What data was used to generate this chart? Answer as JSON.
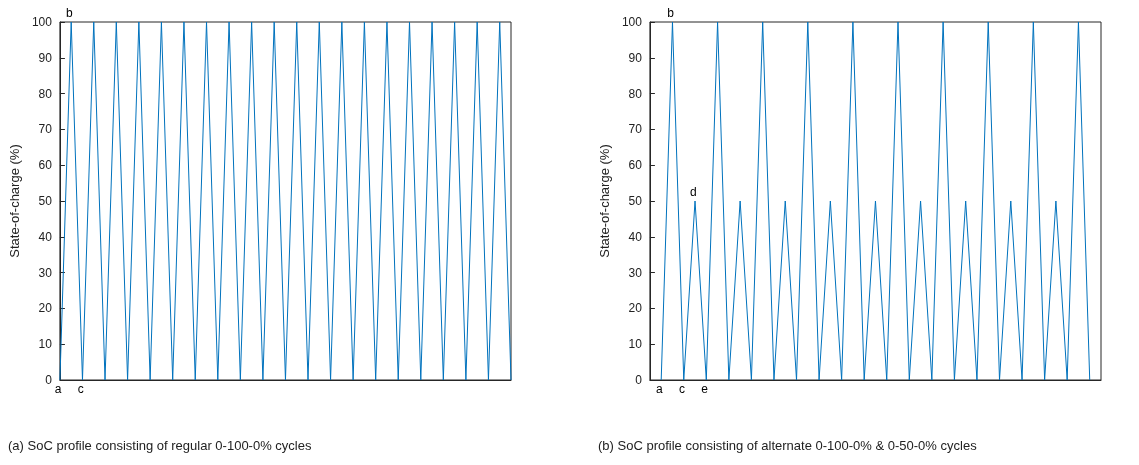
{
  "chart_data": [
    {
      "type": "line",
      "title": "(a) SoC profile consisting of regular 0-100-0% cycles",
      "ylabel": "State-of-charge (%)",
      "categories": [
        null,
        null,
        null,
        null,
        null,
        null,
        null,
        null,
        null,
        null,
        null,
        null,
        null,
        null,
        null,
        null,
        null,
        null,
        null,
        null,
        null,
        null,
        null,
        null,
        null,
        null,
        null,
        null,
        null,
        null,
        null,
        null,
        null,
        null,
        null,
        null,
        null,
        null,
        null,
        null,
        null
      ],
      "series": [
        {
          "color": "#0072bd",
          "values": [
            0,
            100,
            0,
            100,
            0,
            100,
            0,
            100,
            0,
            100,
            0,
            100,
            0,
            100,
            0,
            100,
            0,
            100,
            0,
            100,
            0,
            100,
            0,
            100,
            0,
            100,
            0,
            100,
            0,
            100,
            0,
            100,
            0,
            100,
            0,
            100,
            0,
            100,
            0,
            100,
            0
          ]
        }
      ],
      "ylim": [
        0,
        100
      ],
      "yticks": [
        0,
        10,
        20,
        30,
        40,
        50,
        60,
        70,
        80,
        90,
        100
      ],
      "tick_labels": "y",
      "grid": false,
      "marker": "none",
      "line_style": "solid",
      "annotations": [
        {
          "text": "a",
          "y": 0
        },
        {
          "text": "b",
          "y": 100
        },
        {
          "text": "c",
          "y": 0
        }
      ]
    },
    {
      "type": "line",
      "title": "(b) SoC profile consisting of alternate 0-100-0% & 0-50-0% cycles",
      "ylabel": "State-of-charge (%)",
      "categories": [
        null,
        null,
        null,
        null,
        null,
        null,
        null,
        null,
        null,
        null,
        null,
        null,
        null,
        null,
        null,
        null,
        null,
        null,
        null,
        null,
        null,
        null,
        null,
        null,
        null,
        null,
        null,
        null,
        null,
        null,
        null,
        null,
        null,
        null,
        null,
        null,
        null,
        null,
        null,
        null,
        null
      ],
      "series": [
        {
          "color": "#0072bd",
          "values": [
            null,
            0,
            100,
            0,
            50,
            0,
            100,
            0,
            50,
            0,
            100,
            0,
            50,
            0,
            100,
            0,
            50,
            0,
            100,
            0,
            50,
            0,
            100,
            0,
            50,
            0,
            100,
            0,
            50,
            0,
            100,
            0,
            50,
            0,
            100,
            0,
            50,
            0,
            100,
            0,
            null
          ]
        }
      ],
      "ylim": [
        0,
        100
      ],
      "yticks": [
        0,
        10,
        20,
        30,
        40,
        50,
        60,
        70,
        80,
        90,
        100
      ],
      "tick_labels": "y",
      "grid": false,
      "marker": "none",
      "line_style": "solid",
      "annotations": [
        {
          "text": "a",
          "y": 0
        },
        {
          "text": "b",
          "y": 100
        },
        {
          "text": "c",
          "y": 0
        },
        {
          "text": "d",
          "y": 50
        },
        {
          "text": "e",
          "y": 0
        }
      ]
    }
  ]
}
